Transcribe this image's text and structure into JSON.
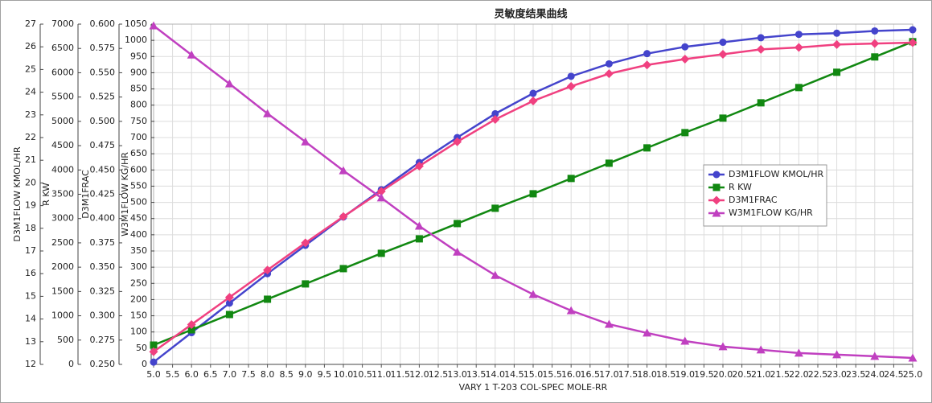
{
  "chart_data": {
    "type": "line",
    "title": "灵敏度结果曲线",
    "xlabel": "VARY   1 T-203 COL-SPEC MOLE-RR",
    "x": [
      5,
      6,
      7,
      8,
      9,
      10,
      11,
      12,
      13,
      14,
      15,
      16,
      17,
      18,
      19,
      20,
      21,
      22,
      23,
      24,
      25
    ],
    "xlim": [
      5,
      25
    ],
    "xticks": [
      {
        "value": 5,
        "label": "5.0"
      },
      {
        "value": 5.5,
        "label": "5.5"
      },
      {
        "value": 6,
        "label": "6.0"
      },
      {
        "value": 6.5,
        "label": "6.5"
      },
      {
        "value": 7,
        "label": "7.0"
      },
      {
        "value": 7.5,
        "label": "7.5"
      },
      {
        "value": 8,
        "label": "8.0"
      },
      {
        "value": 8.5,
        "label": "8.5"
      },
      {
        "value": 9,
        "label": "9.0"
      },
      {
        "value": 9.5,
        "label": "9.5"
      },
      {
        "value": 10,
        "label": "10.0"
      },
      {
        "value": 10.5,
        "label": "10.5"
      },
      {
        "value": 11,
        "label": "11.0"
      },
      {
        "value": 11.5,
        "label": "11.5"
      },
      {
        "value": 12,
        "label": "12.0"
      },
      {
        "value": 12.5,
        "label": "12.5"
      },
      {
        "value": 13,
        "label": "13.0"
      },
      {
        "value": 13.5,
        "label": "13.5"
      },
      {
        "value": 14,
        "label": "14.0"
      },
      {
        "value": 14.5,
        "label": "14.5"
      },
      {
        "value": 15,
        "label": "15.0"
      },
      {
        "value": 15.5,
        "label": "15.5"
      },
      {
        "value": 16,
        "label": "16.0"
      },
      {
        "value": 16.5,
        "label": "16.5"
      },
      {
        "value": 17,
        "label": "17.0"
      },
      {
        "value": 17.5,
        "label": "17.5"
      },
      {
        "value": 18,
        "label": "18.0"
      },
      {
        "value": 18.5,
        "label": "18.5"
      },
      {
        "value": 19,
        "label": "19.0"
      },
      {
        "value": 19.5,
        "label": "19.5"
      },
      {
        "value": 20,
        "label": "20.0"
      },
      {
        "value": 20.5,
        "label": "20.5"
      },
      {
        "value": 21,
        "label": "21.0"
      },
      {
        "value": 21.5,
        "label": "21.5"
      },
      {
        "value": 22,
        "label": "22.0"
      },
      {
        "value": 22.5,
        "label": "22.5"
      },
      {
        "value": 23,
        "label": "23.0"
      },
      {
        "value": 23.5,
        "label": "23.5"
      },
      {
        "value": 24,
        "label": "24.0"
      },
      {
        "value": 24.5,
        "label": "24.5"
      },
      {
        "value": 25,
        "label": "25.0"
      }
    ],
    "y_axes": [
      {
        "label": "D3M1FLOW KMOL/HR",
        "ylim": [
          12,
          27
        ],
        "yticks": [
          12,
          13,
          14,
          15,
          16,
          17,
          18,
          19,
          20,
          21,
          22,
          23,
          24,
          25,
          26,
          27
        ]
      },
      {
        "label": "R KW",
        "ylim": [
          0,
          7000
        ],
        "yticks": [
          0,
          500,
          1000,
          1500,
          2000,
          2500,
          3000,
          3500,
          4000,
          4500,
          5000,
          5500,
          6000,
          6500,
          7000
        ]
      },
      {
        "label": "D3M1FRAC",
        "ylim": [
          0.25,
          0.6
        ],
        "yticks": [
          {
            "value": 0.25,
            "label": "0.250"
          },
          {
            "value": 0.275,
            "label": "0.275"
          },
          {
            "value": 0.3,
            "label": "0.300"
          },
          {
            "value": 0.325,
            "label": "0.325"
          },
          {
            "value": 0.35,
            "label": "0.350"
          },
          {
            "value": 0.375,
            "label": "0.375"
          },
          {
            "value": 0.4,
            "label": "0.400"
          },
          {
            "value": 0.425,
            "label": "0.425"
          },
          {
            "value": 0.45,
            "label": "0.450"
          },
          {
            "value": 0.475,
            "label": "0.475"
          },
          {
            "value": 0.5,
            "label": "0.500"
          },
          {
            "value": 0.525,
            "label": "0.525"
          },
          {
            "value": 0.55,
            "label": "0.550"
          },
          {
            "value": 0.575,
            "label": "0.575"
          },
          {
            "value": 0.6,
            "label": "0.600"
          }
        ]
      },
      {
        "label": "W3M1FLOW KG/HR",
        "ylim": [
          0,
          1050
        ],
        "yticks": [
          0,
          50,
          100,
          150,
          200,
          250,
          300,
          350,
          400,
          450,
          500,
          550,
          600,
          650,
          700,
          750,
          800,
          850,
          900,
          950,
          1000,
          1050
        ]
      }
    ],
    "grid": true,
    "legend": "center-right",
    "series": [
      {
        "name": "D3M1FLOW KMOL/HR",
        "color": "#4444cc",
        "marker": "circle",
        "axis": 0,
        "values": [
          12.1,
          13.4,
          14.7,
          16.0,
          17.25,
          18.5,
          19.7,
          20.9,
          22.0,
          23.05,
          23.95,
          24.7,
          25.25,
          25.7,
          26.0,
          26.2,
          26.4,
          26.55,
          26.6,
          26.7,
          26.75
        ]
      },
      {
        "name": "R KW",
        "color": "#118811",
        "marker": "square",
        "axis": 1,
        "values": [
          397,
          712,
          1026,
          1341,
          1656,
          1970,
          2285,
          2583,
          2897,
          3212,
          3510,
          3825,
          4139,
          4454,
          4768,
          5066,
          5381,
          5695,
          6010,
          6325,
          6639
        ]
      },
      {
        "name": "D3M1FRAC",
        "color": "#f04080",
        "marker": "diamond",
        "axis": 2,
        "values": [
          0.263,
          0.291,
          0.319,
          0.347,
          0.375,
          0.402,
          0.428,
          0.454,
          0.479,
          0.502,
          0.521,
          0.536,
          0.549,
          0.558,
          0.564,
          0.569,
          0.574,
          0.576,
          0.579,
          0.58,
          0.581
        ]
      },
      {
        "name": "W3M1FLOW KG/HR",
        "color": "#c040c0",
        "marker": "triangle",
        "axis": 3,
        "values": [
          1045,
          955,
          866,
          774,
          687,
          598,
          514,
          427,
          347,
          275,
          216,
          166,
          124,
          97,
          72,
          55,
          45,
          35,
          30,
          25,
          20
        ]
      }
    ]
  }
}
